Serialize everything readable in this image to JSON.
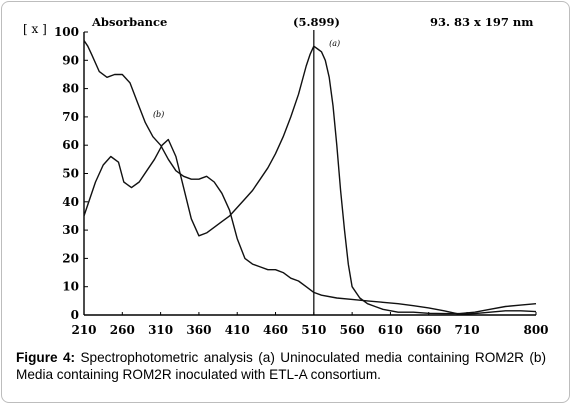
{
  "chart_data": {
    "type": "line",
    "ylabel": "[ x ]",
    "axis_title": "Absorbance",
    "peak_label": "(5.899)",
    "corner_note": "93. 83 x 197 nm",
    "ylim": [
      0,
      100
    ],
    "xlim": [
      210,
      800
    ],
    "yticks": [
      "100",
      "90",
      "80",
      "70",
      "60",
      "50",
      "40",
      "30",
      "20",
      "10",
      "0"
    ],
    "xticks": [
      "210",
      "260",
      "310",
      "360",
      "410",
      "460",
      "510",
      "560",
      "610",
      "660",
      "710",
      "800"
    ],
    "peak_x": 510,
    "grid": false,
    "series": [
      {
        "name": "(a)",
        "label_at": [
          530,
          95
        ],
        "x": [
          210,
          225,
          235,
          245,
          255,
          262,
          272,
          282,
          292,
          302,
          312,
          320,
          330,
          340,
          350,
          360,
          370,
          380,
          390,
          400,
          410,
          420,
          430,
          440,
          450,
          460,
          470,
          480,
          490,
          500,
          505,
          510,
          515,
          520,
          525,
          530,
          535,
          540,
          545,
          550,
          555,
          560,
          570,
          580,
          590,
          600,
          620,
          640,
          660,
          680,
          700,
          720,
          740,
          760,
          780,
          800
        ],
        "y": [
          35,
          47,
          53,
          56,
          54,
          47,
          45,
          47,
          51,
          55,
          60,
          62,
          56,
          45,
          34,
          28,
          29,
          31,
          33,
          35,
          38,
          41,
          44,
          48,
          52,
          57,
          63,
          70,
          78,
          88,
          92,
          95,
          94,
          93,
          90,
          84,
          74,
          60,
          44,
          30,
          18,
          10,
          6,
          4,
          3,
          2,
          1,
          1,
          0.6,
          0.5,
          0.5,
          1,
          2,
          3,
          3.5,
          4
        ]
      },
      {
        "name": "(b)",
        "label_at": [
          300,
          70
        ],
        "x": [
          210,
          215,
          220,
          230,
          240,
          250,
          260,
          270,
          280,
          290,
          300,
          310,
          320,
          330,
          340,
          350,
          360,
          370,
          380,
          390,
          400,
          410,
          420,
          430,
          440,
          450,
          460,
          470,
          480,
          490,
          500,
          510,
          520,
          540,
          560,
          580,
          600,
          620,
          640,
          660,
          680,
          700,
          720,
          740,
          760,
          780,
          800
        ],
        "y": [
          97,
          95,
          92,
          86,
          84,
          85,
          85,
          82,
          75,
          68,
          63,
          60,
          55,
          51,
          49,
          48,
          48,
          49,
          47,
          43,
          37,
          27,
          20,
          18,
          17,
          16,
          16,
          15,
          13,
          12,
          10,
          8,
          7,
          6,
          5.5,
          5,
          4.5,
          4,
          3.3,
          2.5,
          1.5,
          0.3,
          0.5,
          1,
          1.5,
          1.5,
          1.2
        ]
      }
    ]
  },
  "caption": {
    "label": "Figure 4:",
    "text": " Spectrophotometric analysis (a) Uninoculated media containing ROM2R (b) Media containing ROM2R inoculated with ETL-A consortium."
  }
}
